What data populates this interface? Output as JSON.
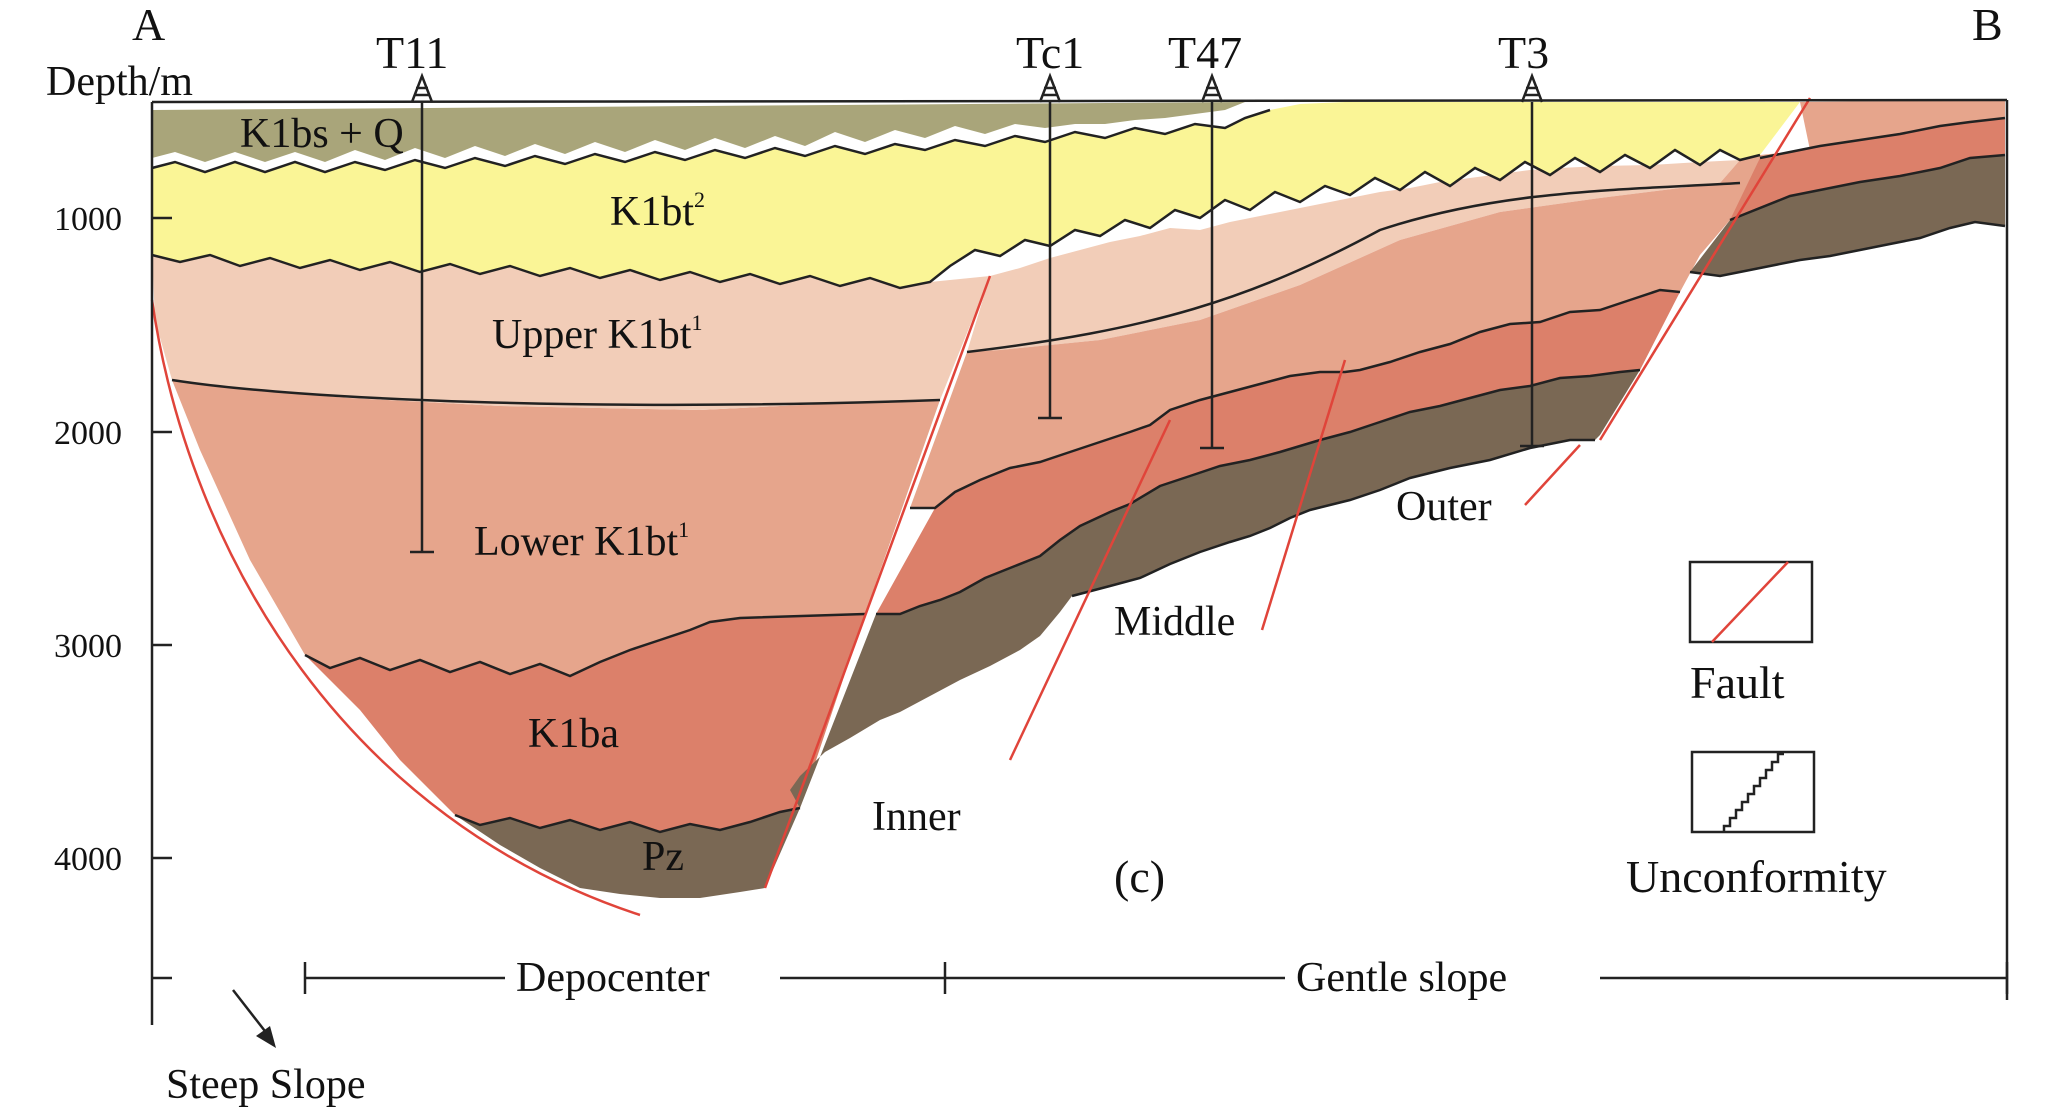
{
  "endpoints": {
    "left": "A",
    "right": "B"
  },
  "axis": {
    "title": "Depth/m",
    "ticks": [
      {
        "label": "1000",
        "depth": 1000
      },
      {
        "label": "2000",
        "depth": 2000
      },
      {
        "label": "3000",
        "depth": 3000
      },
      {
        "label": "4000",
        "depth": 4000
      }
    ]
  },
  "wells": [
    {
      "name": "T11",
      "td": 2550
    },
    {
      "name": "Tc1",
      "td": 1950
    },
    {
      "name": "T47",
      "td": 2080
    },
    {
      "name": "T3",
      "td": 2060
    }
  ],
  "layers": {
    "k1bs_q": "K1bs + Q",
    "k1bt2": "K1bt",
    "k1bt2_sup": "2",
    "upper_k1bt1": "Upper K1bt",
    "upper_k1bt1_sup": "1",
    "lower_k1bt1": "Lower K1bt",
    "lower_k1bt1_sup": "1",
    "k1ba": "K1ba",
    "pz": "Pz"
  },
  "zones": {
    "inner": "Inner",
    "middle": "Middle",
    "outer": "Outer",
    "depocenter": "Depocenter",
    "gentle_slope": "Gentle slope",
    "steep_slope": "Steep Slope"
  },
  "panel_label": "(c)",
  "legend": {
    "fault": "Fault",
    "unconformity": "Unconformity"
  },
  "colors": {
    "k1bs_q": "#a9a57a",
    "k1bt2": "#faf596",
    "upper_k1bt1": "#f2cdb8",
    "lower_k1bt1": "#e6a58c",
    "k1ba": "#dc806a",
    "pz": "#7a6854",
    "fault": "#e0443a",
    "line": "#222222"
  }
}
